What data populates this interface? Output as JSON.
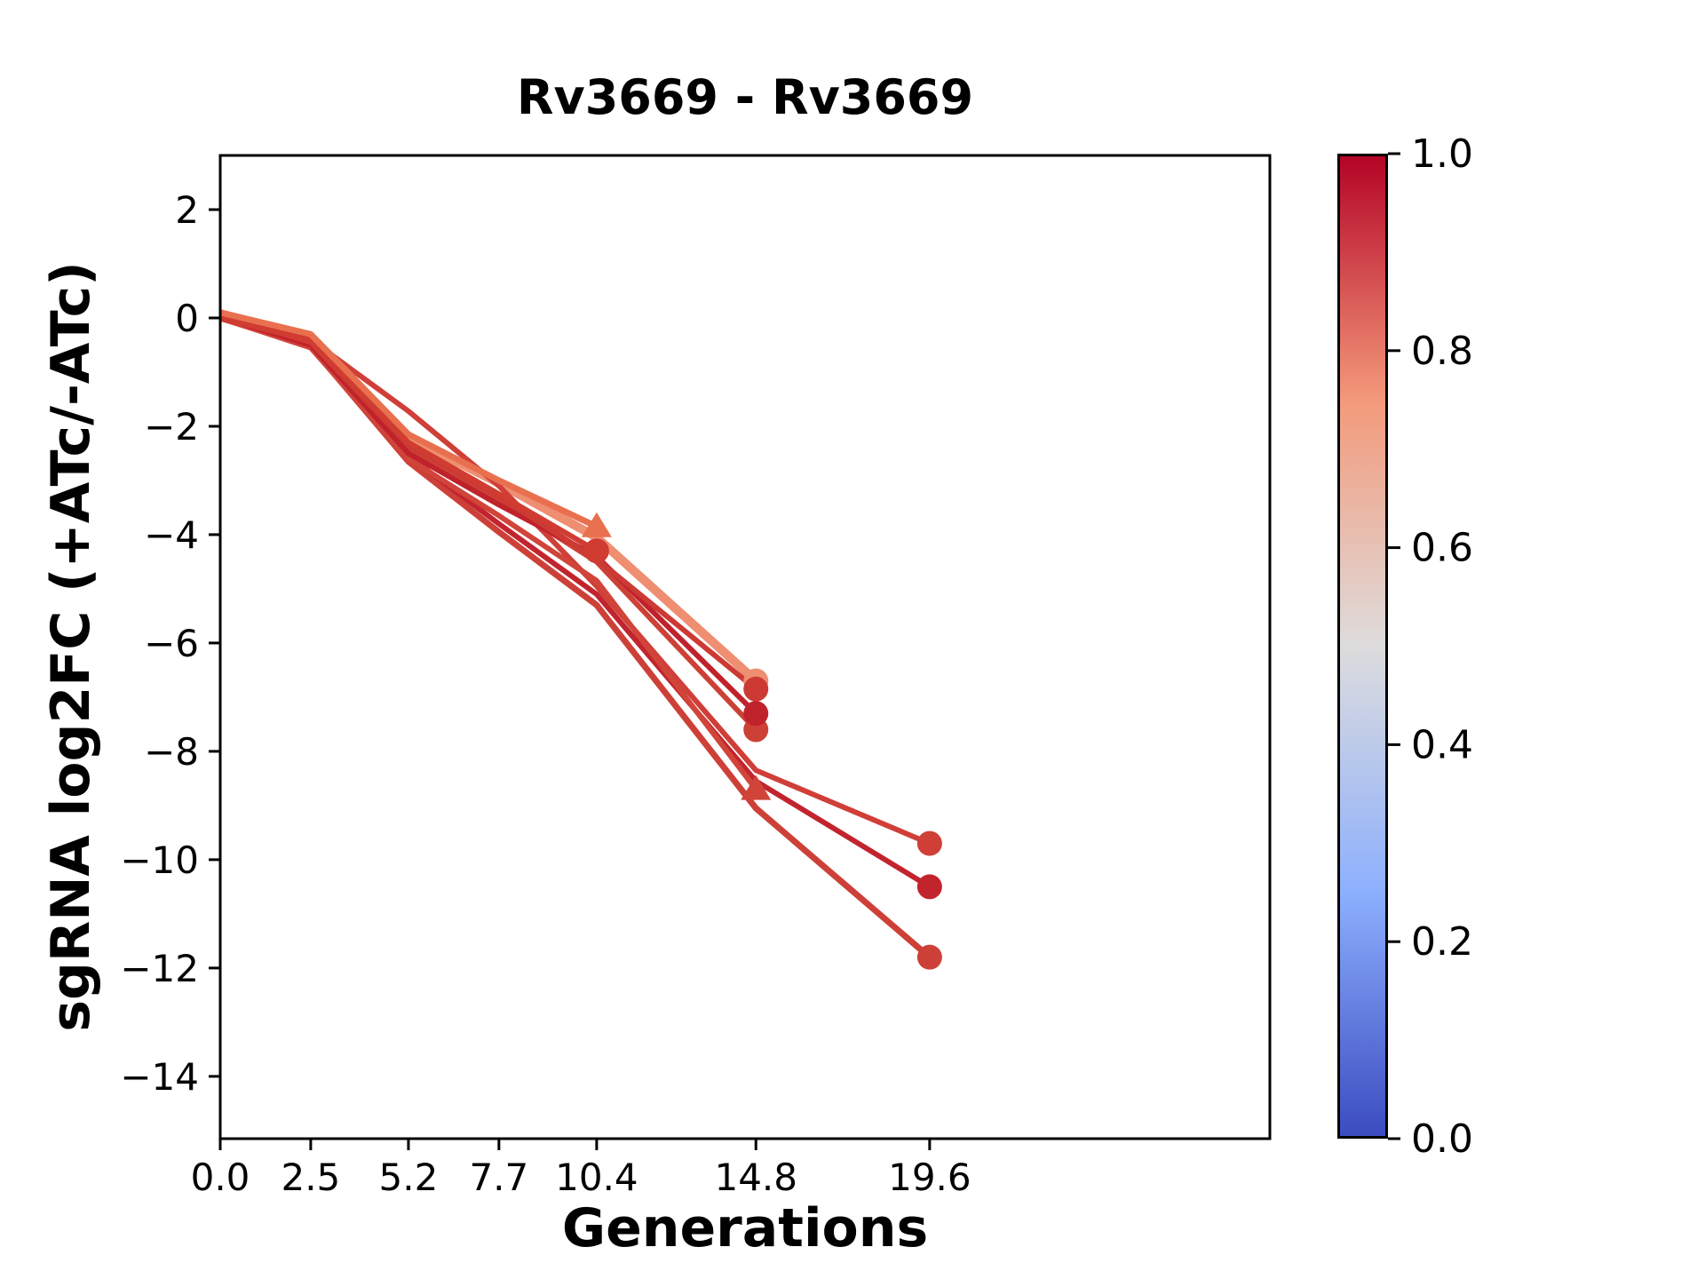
{
  "chart_data": {
    "type": "line",
    "title": "Rv3669 - Rv3669",
    "xlabel": "Generations",
    "ylabel": "sgRNA log2FC (+ATc/-ATc)",
    "xlim": [
      0,
      29.0
    ],
    "ylim": [
      -15.15,
      3.0
    ],
    "grid": false,
    "x_ticks": [
      0.0,
      2.5,
      5.2,
      7.7,
      10.4,
      14.8,
      19.6
    ],
    "x_tick_labels": [
      "0.0",
      "2.5",
      "5.2",
      "7.7",
      "10.4",
      "14.8",
      "19.6"
    ],
    "y_ticks": [
      2,
      0,
      -2,
      -4,
      -6,
      -8,
      -10,
      -12,
      -14
    ],
    "y_tick_labels": [
      "2",
      "0",
      "−2",
      "−4",
      "−6",
      "−8",
      "−10",
      "−12",
      "−14"
    ],
    "series": [
      {
        "id": "series-1",
        "color": "#ef8e71",
        "linewidth": 10,
        "marker": "circle",
        "x": [
          0,
          2.5,
          5.2,
          7.7,
          10.4,
          14.8
        ],
        "y": [
          0.08,
          -0.35,
          -2.2,
          -3.05,
          -4.05,
          -6.7
        ]
      },
      {
        "id": "series-2",
        "color": "#cf3f38",
        "linewidth": 6,
        "marker": "circle",
        "x": [
          0,
          2.5,
          5.2,
          7.7,
          10.4,
          14.8,
          19.6
        ],
        "y": [
          0.05,
          -0.4,
          -1.72,
          -3.1,
          -4.95,
          -8.35,
          -9.7
        ]
      },
      {
        "id": "series-3",
        "color": "#cd4038",
        "linewidth": 7,
        "marker": "circle",
        "x": [
          0,
          2.5,
          5.2,
          7.7,
          10.4,
          14.8,
          19.6
        ],
        "y": [
          0.0,
          -0.52,
          -2.65,
          -3.95,
          -5.3,
          -9.05,
          -11.8
        ]
      },
      {
        "id": "series-4",
        "color": "#c2242e",
        "linewidth": 6,
        "marker": "circle",
        "x": [
          0,
          2.5,
          5.2,
          7.7,
          10.4,
          14.8,
          19.6
        ],
        "y": [
          0.0,
          -0.5,
          -2.55,
          -3.8,
          -5.1,
          -8.55,
          -10.5
        ]
      },
      {
        "id": "series-5",
        "color": "#d1443a",
        "linewidth": 6,
        "marker": "triangle-up",
        "x": [
          0,
          2.5,
          5.2,
          7.7,
          10.4,
          14.8
        ],
        "y": [
          0.0,
          -0.55,
          -2.6,
          -3.65,
          -4.85,
          -8.7
        ]
      },
      {
        "id": "series-6",
        "color": "#cc4036",
        "linewidth": 6,
        "marker": "circle",
        "x": [
          0,
          2.5,
          5.2,
          7.7,
          10.4,
          14.8
        ],
        "y": [
          0.0,
          -0.48,
          -2.42,
          -3.35,
          -4.5,
          -7.6
        ]
      },
      {
        "id": "series-7",
        "color": "#c0222b",
        "linewidth": 6,
        "marker": "circle",
        "x": [
          0,
          2.5,
          5.2,
          7.7,
          10.4,
          14.8
        ],
        "y": [
          0.02,
          -0.5,
          -2.5,
          -3.45,
          -4.4,
          -7.3
        ]
      },
      {
        "id": "series-8",
        "color": "#cc3a33",
        "linewidth": 6,
        "marker": "circle",
        "x": [
          0,
          2.5,
          5.2,
          7.7,
          10.4,
          14.8
        ],
        "y": [
          0.05,
          -0.45,
          -2.35,
          -3.3,
          -4.45,
          -6.85
        ]
      },
      {
        "id": "series-9",
        "color": "#d03c31",
        "linewidth": 6,
        "marker": "circle",
        "x": [
          0,
          2.5,
          5.2,
          7.7,
          10.4
        ],
        "y": [
          0.0,
          -0.42,
          -2.3,
          -3.25,
          -4.3
        ]
      },
      {
        "id": "series-10",
        "color": "#e9704f",
        "linewidth": 7,
        "marker": "triangle-up",
        "x": [
          0,
          2.5,
          5.2,
          7.7,
          10.4
        ],
        "y": [
          0.1,
          -0.3,
          -2.15,
          -3.0,
          -3.85
        ]
      }
    ],
    "colorbar": {
      "colormap": "coolwarm",
      "ticks": [
        0.0,
        0.2,
        0.4,
        0.6,
        0.8,
        1.0
      ],
      "tick_labels": [
        "0.0",
        "0.2",
        "0.4",
        "0.6",
        "0.8",
        "1.0"
      ],
      "gradient_stops": [
        "#3b4cc0",
        "#8db0fe",
        "#dddcdc",
        "#f49a7b",
        "#b40426"
      ]
    }
  }
}
